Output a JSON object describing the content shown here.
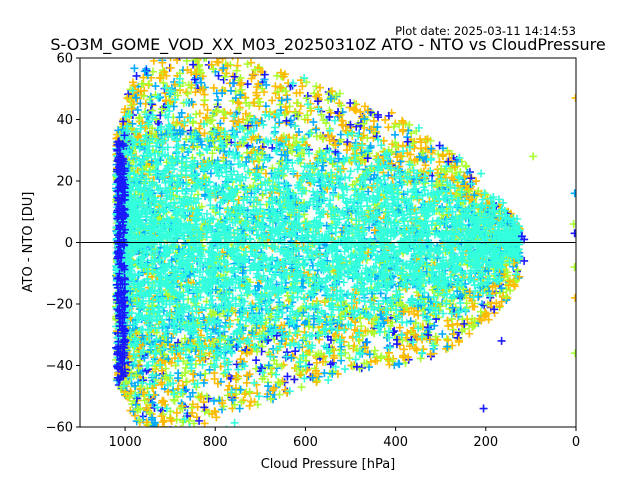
{
  "plot_date": "Plot date: 2025-03-11 14:14:53",
  "chart_data": {
    "type": "scatter",
    "title": "S-O3M_GOME_VOD_XX_M03_20250310Z ATO - NTO vs CloudPressure",
    "xlabel": "Cloud Pressure [hPa]",
    "ylabel": "ATO - NTO [DU]",
    "xlim": [
      1100,
      0
    ],
    "ylim": [
      -60,
      60
    ],
    "x_axis_reversed": true,
    "xticks": [
      1000,
      800,
      600,
      400,
      200,
      0
    ],
    "yticks": [
      -60,
      -40,
      -20,
      0,
      20,
      40,
      60
    ],
    "xtick_labels": [
      "1000",
      "800",
      "600",
      "400",
      "200",
      "0"
    ],
    "ytick_labels": [
      "−60",
      "−40",
      "−20",
      "0",
      "20",
      "40",
      "60"
    ],
    "reference_line_y": 0,
    "marker": "+",
    "grid": false,
    "legend": "none",
    "color_groups": [
      {
        "color": "#1a1aff",
        "role": "outliers and low-pressure edge"
      },
      {
        "color": "#00aaff",
        "role": "mid spread"
      },
      {
        "color": "#aaff33",
        "role": "mid spread"
      },
      {
        "color": "#ffbb00",
        "role": "upper and lower envelope"
      },
      {
        "color": "#33ffdd",
        "role": "dense core"
      }
    ],
    "envelope": [
      {
        "x": 1010,
        "y_min": -45,
        "y_max": 35
      },
      {
        "x": 980,
        "y_min": -55,
        "y_max": 55
      },
      {
        "x": 900,
        "y_min": -60,
        "y_max": 60
      },
      {
        "x": 800,
        "y_min": -55,
        "y_max": 60
      },
      {
        "x": 700,
        "y_min": -50,
        "y_max": 55
      },
      {
        "x": 600,
        "y_min": -45,
        "y_max": 50
      },
      {
        "x": 500,
        "y_min": -40,
        "y_max": 45
      },
      {
        "x": 400,
        "y_min": -38,
        "y_max": 40
      },
      {
        "x": 300,
        "y_min": -35,
        "y_max": 30
      },
      {
        "x": 250,
        "y_min": -30,
        "y_max": 25
      },
      {
        "x": 200,
        "y_min": -25,
        "y_max": 15
      },
      {
        "x": 150,
        "y_min": -18,
        "y_max": 10
      },
      {
        "x": 110,
        "y_min": -6,
        "y_max": 2
      }
    ]
  }
}
